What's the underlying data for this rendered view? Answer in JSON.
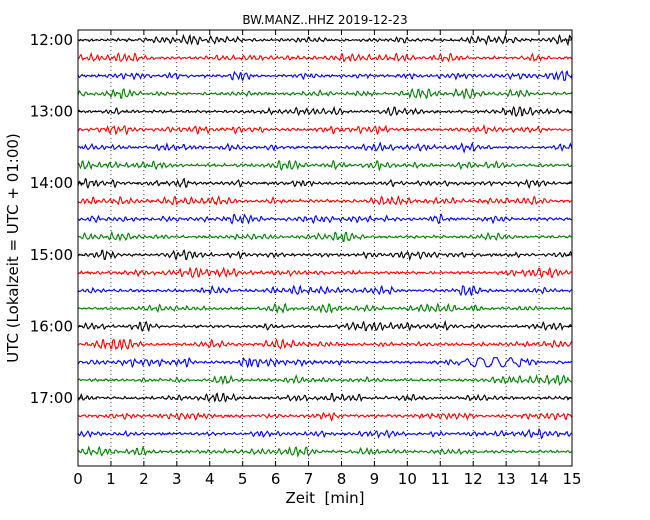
{
  "chart_data": {
    "type": "line",
    "title": "BW.MANZ..HHZ 2019-12-23",
    "xlabel": "Zeit  [min]",
    "ylabel": "UTC (Lokalzeit = UTC + 01:00)",
    "xlim": [
      0,
      15
    ],
    "x_ticks": [
      "0",
      "1",
      "2",
      "3",
      "4",
      "5",
      "6",
      "7",
      "8",
      "9",
      "10",
      "11",
      "12",
      "13",
      "14",
      "15"
    ],
    "y_ticks": [
      "12:00",
      "13:00",
      "14:00",
      "15:00",
      "16:00",
      "17:00"
    ],
    "grid": "vertical dotted",
    "trace_colors": [
      "#000000",
      "#ff0000",
      "#0000ff",
      "#008000"
    ],
    "trace_minutes_per_row": 15,
    "rows_per_hour": 4,
    "trace_count": 24,
    "trace_start": "12:00",
    "trace_end": "18:00",
    "events": [
      {
        "row": 18,
        "start_min": 11.4,
        "end_min": 13.8,
        "amplitude": 1.8,
        "note": "blue trace 16:30"
      }
    ]
  }
}
